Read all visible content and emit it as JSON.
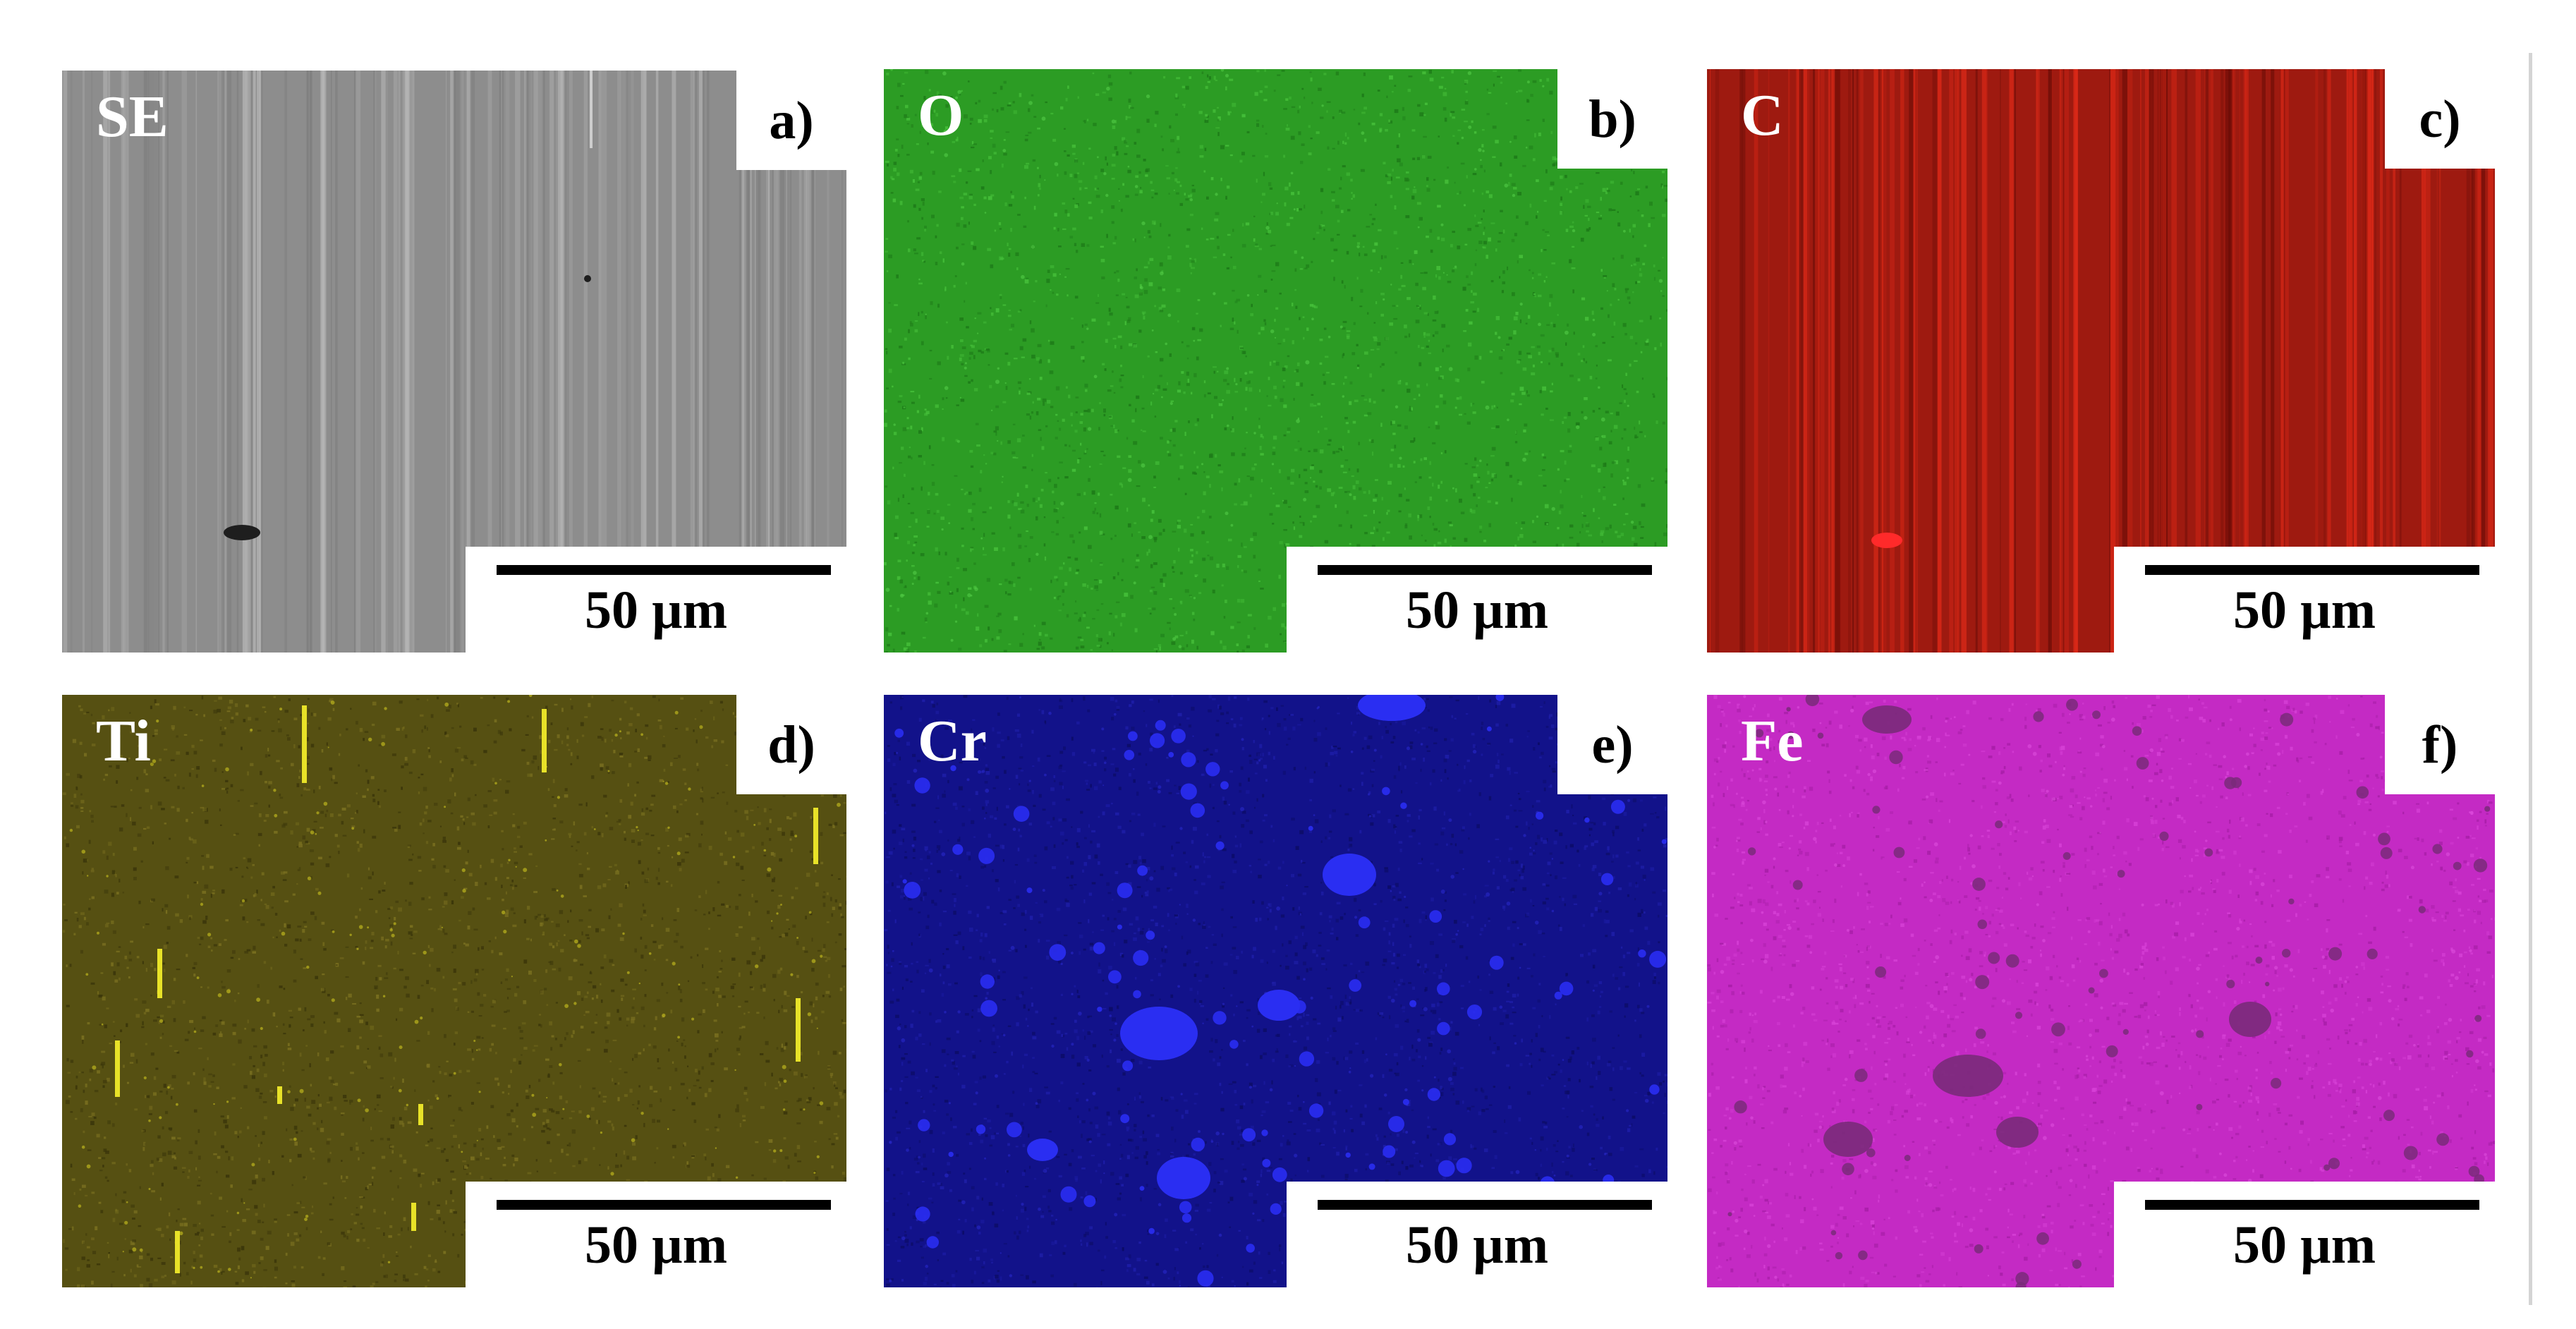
{
  "panels": [
    {
      "id": "a",
      "element": "SE",
      "letter": "a)",
      "scale": "50 µm",
      "map": {
        "base": "#8d8d8d",
        "texture": "streaks",
        "colors": [
          "#a4a4a4",
          "#7c7c7c",
          "#b6b6b6"
        ],
        "feature": "#1e1e1e"
      }
    },
    {
      "id": "b",
      "element": "O",
      "letter": "b)",
      "scale": "50 µm",
      "map": {
        "base": "#2c9c24",
        "texture": "noise",
        "colors": [
          "#46c03a",
          "#1d7a18",
          "#58d24a"
        ]
      }
    },
    {
      "id": "c",
      "element": "C",
      "letter": "c)",
      "scale": "50 µm",
      "map": {
        "base": "#9e1a10",
        "texture": "streaks",
        "colors": [
          "#cc2414",
          "#6a0d07",
          "#e02a18"
        ],
        "feature": "#ff2a2a"
      }
    },
    {
      "id": "d",
      "element": "Ti",
      "letter": "d)",
      "scale": "50 µm",
      "map": {
        "base": "#565012",
        "texture": "noise",
        "colors": [
          "#7a7020",
          "#3a350a",
          "#d8d020"
        ],
        "feature": "#f0ea2a"
      }
    },
    {
      "id": "e",
      "element": "Cr",
      "letter": "e)",
      "scale": "50 µm",
      "map": {
        "base": "#12128a",
        "texture": "noise",
        "colors": [
          "#1e1ea8",
          "#0c0c66",
          "#2a2ad0"
        ],
        "feature": "#2a2ef2"
      }
    },
    {
      "id": "f",
      "element": "Fe",
      "letter": "f)",
      "scale": "50 µm",
      "map": {
        "base": "#c42ac4",
        "texture": "noise",
        "colors": [
          "#d640d6",
          "#a81ea8",
          "#e050e0"
        ],
        "feature": "#7a2a7a"
      }
    }
  ]
}
